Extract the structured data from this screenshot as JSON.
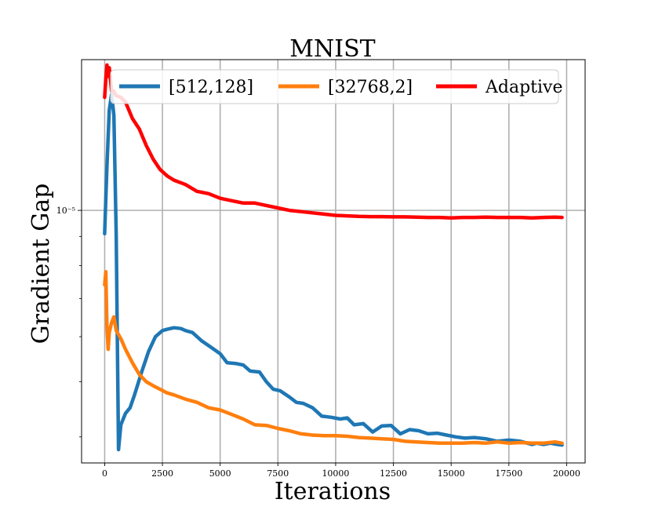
{
  "chart_data": {
    "type": "line",
    "title": "MNIST",
    "xlabel": "Iterations",
    "ylabel": "Gradient Gap",
    "yscale": "log",
    "xlim": [
      -1000,
      20800
    ],
    "ylim": [
      3.6e-06,
      1.84e-05
    ],
    "grid": true,
    "legend_position": "top",
    "x_ticks": [
      0,
      2500,
      5000,
      7500,
      10000,
      12500,
      15000,
      17500,
      20000
    ],
    "x_tick_labels": [
      "0",
      "2500",
      "5000",
      "7500",
      "10000",
      "12500",
      "15000",
      "17500",
      "20000"
    ],
    "y_ticks": [
      1e-05
    ],
    "y_tick_labels": [
      "10⁻⁵"
    ],
    "series": [
      {
        "name": "[512,128]",
        "color": "#1f77b4",
        "x": [
          0,
          100,
          200,
          300,
          400,
          500,
          600,
          700,
          900,
          1100,
          1300,
          1600,
          1900,
          2200,
          2500,
          2700,
          3000,
          3300,
          3500,
          3800,
          4200,
          4600,
          5000,
          5300,
          5700,
          6000,
          6300,
          6700,
          7000,
          7300,
          7600,
          8000,
          8300,
          8600,
          9000,
          9400,
          9800,
          10200,
          10500,
          10800,
          11200,
          11600,
          12000,
          12400,
          12800,
          13200,
          13600,
          14000,
          14400,
          14800,
          15200,
          15600,
          16000,
          16500,
          17000,
          17500,
          18000,
          18500,
          18700,
          19000,
          19300,
          19600,
          19800
        ],
        "y": [
          9.1e-06,
          1.2e-05,
          1.5e-05,
          1.6e-05,
          1.47e-05,
          9e-06,
          3.8e-06,
          4.2e-06,
          4.4e-06,
          4.5e-06,
          4.75e-06,
          5.2e-06,
          5.65e-06,
          6e-06,
          6.15e-06,
          6.18e-06,
          6.22e-06,
          6.2e-06,
          6.15e-06,
          6.1e-06,
          5.9e-06,
          5.75e-06,
          5.6e-06,
          5.4e-06,
          5.38e-06,
          5.35e-06,
          5.22e-06,
          5.2e-06,
          5e-06,
          4.85e-06,
          4.82e-06,
          4.7e-06,
          4.6e-06,
          4.58e-06,
          4.5e-06,
          4.35e-06,
          4.33e-06,
          4.3e-06,
          4.32e-06,
          4.2e-06,
          4.22e-06,
          4.08e-06,
          4.18e-06,
          4.19e-06,
          4.05e-06,
          4.12e-06,
          4.1e-06,
          4.05e-06,
          4.06e-06,
          4.03e-06,
          4e-06,
          3.98e-06,
          3.99e-06,
          3.97e-06,
          3.93e-06,
          3.95e-06,
          3.93e-06,
          3.88e-06,
          3.9e-06,
          3.88e-06,
          3.9e-06,
          3.88e-06,
          3.87e-06
        ]
      },
      {
        "name": "[32768,2]",
        "color": "#ff7f0e",
        "x": [
          0,
          50,
          100,
          150,
          200,
          300,
          400,
          500,
          700,
          900,
          1200,
          1500,
          1800,
          2100,
          2400,
          2700,
          3000,
          3500,
          4000,
          4500,
          5000,
          5500,
          6000,
          6500,
          7000,
          7500,
          8000,
          8500,
          9000,
          9500,
          10000,
          10500,
          11000,
          11500,
          12000,
          12500,
          13000,
          13500,
          14000,
          14500,
          15000,
          15500,
          16000,
          16500,
          17000,
          17500,
          18000,
          18500,
          19000,
          19500,
          19800
        ],
        "y": [
          7.4e-06,
          7.8e-06,
          6.2e-06,
          5.7e-06,
          6.1e-06,
          6.35e-06,
          6.5e-06,
          6.15e-06,
          5.95e-06,
          5.7e-06,
          5.4e-06,
          5.15e-06,
          5e-06,
          4.92e-06,
          4.85e-06,
          4.78e-06,
          4.74e-06,
          4.66e-06,
          4.6e-06,
          4.5e-06,
          4.46e-06,
          4.38e-06,
          4.3e-06,
          4.2e-06,
          4.19e-06,
          4.14e-06,
          4.1e-06,
          4.05e-06,
          4.03e-06,
          4.02e-06,
          4.02e-06,
          4.01e-06,
          3.99e-06,
          3.98e-06,
          3.97e-06,
          3.96e-06,
          3.93e-06,
          3.92e-06,
          3.91e-06,
          3.9e-06,
          3.9e-06,
          3.9e-06,
          3.91e-06,
          3.9e-06,
          3.92e-06,
          3.9e-06,
          3.91e-06,
          3.9e-06,
          3.9e-06,
          3.92e-06,
          3.9e-06
        ]
      },
      {
        "name": "Adaptive",
        "color": "#ff0000",
        "x": [
          0,
          50,
          100,
          150,
          200,
          300,
          400,
          500,
          700,
          900,
          1200,
          1500,
          1800,
          2100,
          2400,
          2700,
          3000,
          3500,
          4000,
          4500,
          5000,
          5500,
          6000,
          6500,
          7000,
          7500,
          8000,
          8500,
          9000,
          9500,
          10000,
          10500,
          11000,
          11500,
          12000,
          12500,
          13000,
          13500,
          14000,
          14500,
          15000,
          15500,
          16000,
          16500,
          17000,
          17500,
          18000,
          18500,
          19000,
          19500,
          19800
        ],
        "y": [
          1.58e-05,
          1.7e-05,
          1.8e-05,
          1.72e-05,
          1.78e-05,
          1.62e-05,
          1.62e-05,
          1.59e-05,
          1.58e-05,
          1.55e-05,
          1.45e-05,
          1.39e-05,
          1.3e-05,
          1.23e-05,
          1.18e-05,
          1.15e-05,
          1.13e-05,
          1.11e-05,
          1.08e-05,
          1.07e-05,
          1.05e-05,
          1.04e-05,
          1.03e-05,
          1.03e-05,
          1.02e-05,
          1.01e-05,
          1e-05,
          9.95e-06,
          9.9e-06,
          9.85e-06,
          9.8e-06,
          9.78e-06,
          9.76e-06,
          9.75e-06,
          9.75e-06,
          9.74e-06,
          9.74e-06,
          9.73e-06,
          9.72e-06,
          9.72e-06,
          9.7e-06,
          9.72e-06,
          9.72e-06,
          9.73e-06,
          9.72e-06,
          9.72e-06,
          9.72e-06,
          9.7e-06,
          9.72e-06,
          9.73e-06,
          9.72e-06
        ]
      }
    ]
  }
}
